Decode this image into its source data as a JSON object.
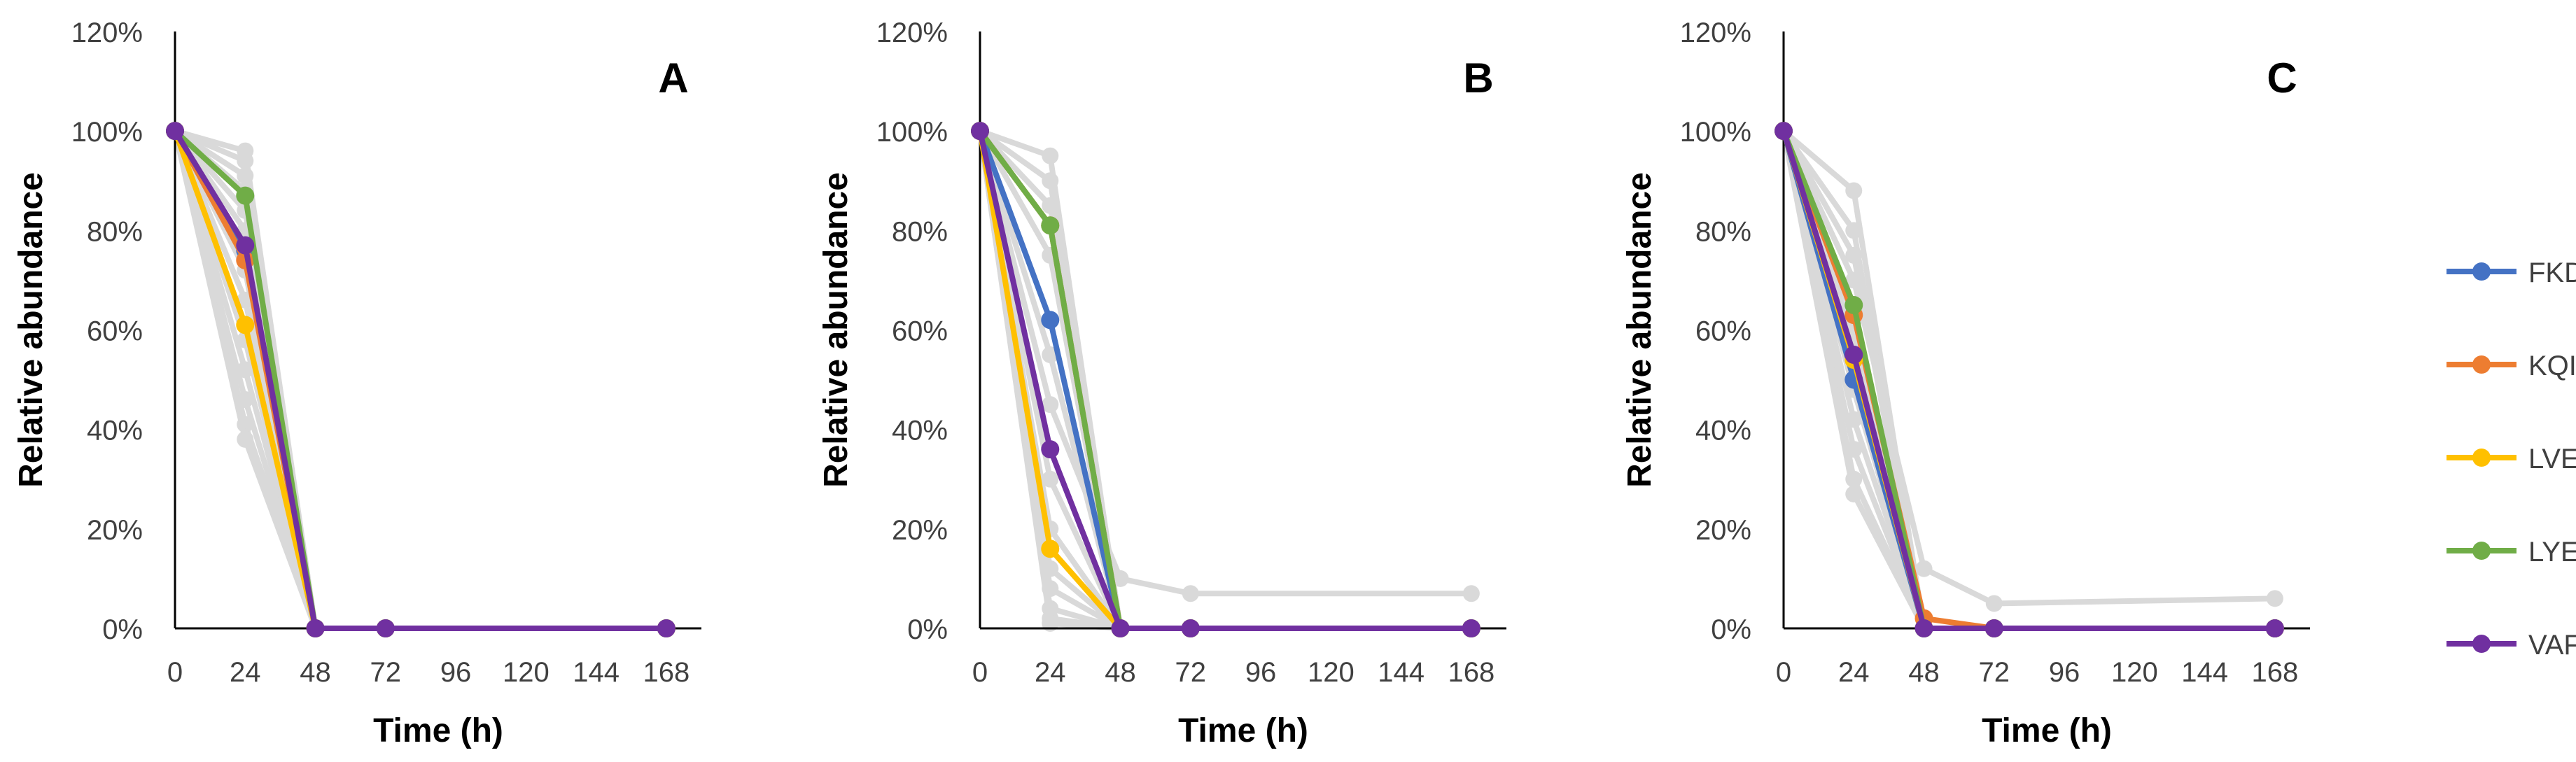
{
  "chart_data": [
    {
      "type": "line",
      "title": "A",
      "xlabel": "Time (h)",
      "ylabel": "Relative abundance",
      "x": [
        0,
        24,
        48,
        72,
        168
      ],
      "xticks": [
        "0",
        "24",
        "48",
        "72",
        "96",
        "120",
        "144",
        "168"
      ],
      "yticks": [
        "0%",
        "20%",
        "40%",
        "60%",
        "80%",
        "100%",
        "120%"
      ],
      "xlim": [
        0,
        180
      ],
      "ylim": [
        0,
        120
      ],
      "grid": false,
      "series": [
        {
          "name": "FKD",
          "color": "#4472C4",
          "values": [
            100,
            76,
            0,
            0,
            0
          ]
        },
        {
          "name": "KQI",
          "color": "#ED7D31",
          "values": [
            100,
            74,
            0,
            0,
            0
          ]
        },
        {
          "name": "LVE",
          "color": "#FFC000",
          "values": [
            100,
            61,
            0,
            0,
            0
          ]
        },
        {
          "name": "LYE",
          "color": "#70AD47",
          "values": [
            100,
            87,
            0,
            0,
            0
          ]
        },
        {
          "name": "VAF",
          "color": "#7030A0",
          "values": [
            100,
            77,
            0,
            0,
            0
          ]
        }
      ],
      "background_series": [
        {
          "color": "#d9d9d9",
          "values": [
            100,
            96,
            0,
            0,
            0
          ]
        },
        {
          "color": "#d9d9d9",
          "values": [
            100,
            94,
            0,
            0,
            0
          ]
        },
        {
          "color": "#d9d9d9",
          "values": [
            100,
            91,
            0,
            0,
            0
          ]
        },
        {
          "color": "#d9d9d9",
          "values": [
            100,
            88,
            0,
            0,
            0
          ]
        },
        {
          "color": "#d9d9d9",
          "values": [
            100,
            84,
            0,
            0,
            0
          ]
        },
        {
          "color": "#d9d9d9",
          "values": [
            100,
            80,
            0,
            0,
            0
          ]
        },
        {
          "color": "#d9d9d9",
          "values": [
            100,
            72,
            0,
            0,
            0
          ]
        },
        {
          "color": "#d9d9d9",
          "values": [
            100,
            66,
            0,
            0,
            0
          ]
        },
        {
          "color": "#d9d9d9",
          "values": [
            100,
            58,
            0,
            0,
            0
          ]
        },
        {
          "color": "#d9d9d9",
          "values": [
            100,
            52,
            0,
            0,
            0
          ]
        },
        {
          "color": "#d9d9d9",
          "values": [
            100,
            46,
            0,
            0,
            0
          ]
        },
        {
          "color": "#d9d9d9",
          "values": [
            100,
            41,
            0,
            0,
            0
          ]
        },
        {
          "color": "#d9d9d9",
          "values": [
            100,
            38,
            0,
            0,
            0
          ]
        }
      ]
    },
    {
      "type": "line",
      "title": "B",
      "xlabel": "Time (h)",
      "ylabel": "Relative abundance",
      "x": [
        0,
        24,
        48,
        72,
        168
      ],
      "xticks": [
        "0",
        "24",
        "48",
        "72",
        "96",
        "120",
        "144",
        "168"
      ],
      "yticks": [
        "0%",
        "20%",
        "40%",
        "60%",
        "80%",
        "100%",
        "120%"
      ],
      "xlim": [
        0,
        180
      ],
      "ylim": [
        0,
        120
      ],
      "grid": false,
      "series": [
        {
          "name": "FKD",
          "color": "#4472C4",
          "values": [
            100,
            62,
            0,
            0,
            0
          ]
        },
        {
          "name": "KQI",
          "color": "#ED7D31",
          "values": [
            100,
            81,
            0,
            0,
            0
          ]
        },
        {
          "name": "LVE",
          "color": "#FFC000",
          "values": [
            100,
            16,
            0,
            0,
            0
          ]
        },
        {
          "name": "LYE",
          "color": "#70AD47",
          "values": [
            100,
            81,
            0,
            0,
            0
          ]
        },
        {
          "name": "VAF",
          "color": "#7030A0",
          "values": [
            100,
            36,
            0,
            0,
            0
          ]
        }
      ],
      "background_series": [
        {
          "color": "#d9d9d9",
          "values": [
            100,
            95,
            0,
            0,
            0
          ]
        },
        {
          "color": "#d9d9d9",
          "values": [
            100,
            90,
            0,
            0,
            0
          ]
        },
        {
          "color": "#d9d9d9",
          "values": [
            100,
            85,
            0,
            0,
            0
          ]
        },
        {
          "color": "#d9d9d9",
          "values": [
            100,
            75,
            0,
            0,
            0
          ]
        },
        {
          "color": "#d9d9d9",
          "values": [
            100,
            55,
            0,
            0,
            0
          ]
        },
        {
          "color": "#d9d9d9",
          "values": [
            100,
            45,
            10,
            7,
            7
          ]
        },
        {
          "color": "#d9d9d9",
          "values": [
            100,
            30,
            0,
            0,
            0
          ]
        },
        {
          "color": "#d9d9d9",
          "values": [
            100,
            20,
            0,
            0,
            0
          ]
        },
        {
          "color": "#d9d9d9",
          "values": [
            100,
            12,
            0,
            0,
            0
          ]
        },
        {
          "color": "#d9d9d9",
          "values": [
            100,
            8,
            0,
            0,
            0
          ]
        },
        {
          "color": "#d9d9d9",
          "values": [
            100,
            4,
            0,
            0,
            0
          ]
        },
        {
          "color": "#d9d9d9",
          "values": [
            100,
            2,
            0,
            0,
            0
          ]
        },
        {
          "color": "#d9d9d9",
          "values": [
            100,
            1,
            0,
            0,
            0
          ]
        }
      ]
    },
    {
      "type": "line",
      "title": "C",
      "xlabel": "Time (h)",
      "ylabel": "Relative abundance",
      "x": [
        0,
        24,
        48,
        72,
        168
      ],
      "xticks": [
        "0",
        "24",
        "48",
        "72",
        "96",
        "120",
        "144",
        "168"
      ],
      "yticks": [
        "0%",
        "20%",
        "40%",
        "60%",
        "80%",
        "100%",
        "120%"
      ],
      "xlim": [
        0,
        180
      ],
      "ylim": [
        0,
        120
      ],
      "grid": false,
      "series": [
        {
          "name": "FKD",
          "color": "#4472C4",
          "values": [
            100,
            50,
            0,
            0,
            0
          ]
        },
        {
          "name": "KQI",
          "color": "#ED7D31",
          "values": [
            100,
            63,
            2,
            0,
            0
          ]
        },
        {
          "name": "LVE",
          "color": "#FFC000",
          "values": [
            100,
            54,
            0,
            0,
            0
          ]
        },
        {
          "name": "LYE",
          "color": "#70AD47",
          "values": [
            100,
            65,
            0,
            0,
            0
          ]
        },
        {
          "name": "VAF",
          "color": "#7030A0",
          "values": [
            100,
            55,
            0,
            0,
            0
          ]
        }
      ],
      "background_series": [
        {
          "color": "#d9d9d9",
          "values": [
            100,
            88,
            0,
            0,
            0
          ]
        },
        {
          "color": "#d9d9d9",
          "values": [
            100,
            80,
            0,
            0,
            0
          ]
        },
        {
          "color": "#d9d9d9",
          "values": [
            100,
            75,
            0,
            0,
            0
          ]
        },
        {
          "color": "#d9d9d9",
          "values": [
            100,
            70,
            12,
            5,
            6
          ]
        },
        {
          "color": "#d9d9d9",
          "values": [
            100,
            62,
            0,
            0,
            0
          ]
        },
        {
          "color": "#d9d9d9",
          "values": [
            100,
            58,
            0,
            0,
            0
          ]
        },
        {
          "color": "#d9d9d9",
          "values": [
            100,
            48,
            0,
            0,
            0
          ]
        },
        {
          "color": "#d9d9d9",
          "values": [
            100,
            42,
            0,
            0,
            0
          ]
        },
        {
          "color": "#d9d9d9",
          "values": [
            100,
            36,
            0,
            0,
            0
          ]
        },
        {
          "color": "#d9d9d9",
          "values": [
            100,
            30,
            0,
            0,
            0
          ]
        },
        {
          "color": "#d9d9d9",
          "values": [
            100,
            27,
            0,
            0,
            0
          ]
        }
      ]
    }
  ],
  "legend": {
    "placement": "right",
    "items": [
      {
        "name": "FKD",
        "color": "#4472C4"
      },
      {
        "name": "KQI",
        "color": "#ED7D31"
      },
      {
        "name": "LVE",
        "color": "#FFC000"
      },
      {
        "name": "LYE",
        "color": "#70AD47"
      },
      {
        "name": "VAF",
        "color": "#7030A0"
      }
    ]
  }
}
